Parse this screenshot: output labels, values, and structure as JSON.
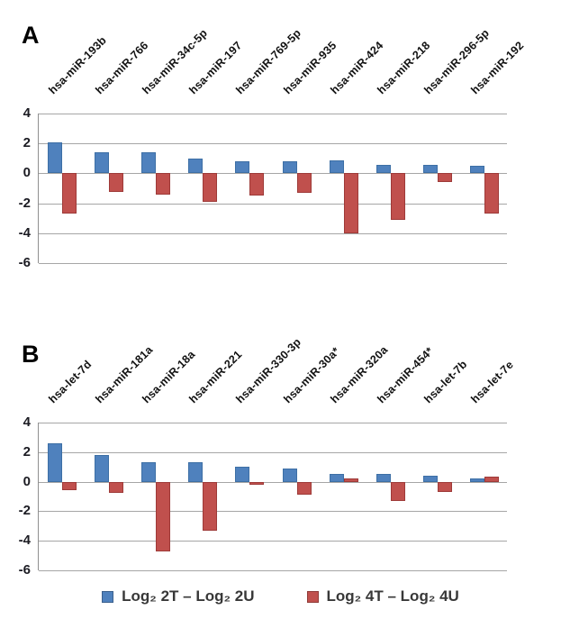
{
  "panels": [
    {
      "letter": "A"
    },
    {
      "letter": "B"
    }
  ],
  "legend": {
    "position": "bottom",
    "items": [
      {
        "label": "Log₂ 2T – Log₂ 2U",
        "color": "#4F81BD"
      },
      {
        "label": "Log₂ 4T – Log₂ 4U",
        "color": "#C0504D"
      }
    ]
  },
  "chart_data": [
    {
      "type": "bar",
      "panel": "A",
      "title": "",
      "xlabel": "",
      "ylabel": "",
      "categories": [
        "hsa-miR-193b",
        "hsa-miR-766",
        "hsa-miR-34c-5p",
        "hsa-miR-197",
        "hsa-miR-769-5p",
        "hsa-miR-935",
        "hsa-miR-424",
        "hsa-miR-218",
        "hsa-miR-296-5p",
        "hsa-miR-192"
      ],
      "series": [
        {
          "name": "Log₂ 2T – Log₂ 2U",
          "color": "#4F81BD",
          "border": "#3D6FA5",
          "values": [
            2.1,
            1.4,
            1.4,
            1.0,
            0.8,
            0.8,
            0.85,
            0.55,
            0.55,
            0.5
          ]
        },
        {
          "name": "Log₂ 4T – Log₂ 4U",
          "color": "#C0504D",
          "border": "#9E3A38",
          "values": [
            -2.7,
            -1.25,
            -1.4,
            -1.9,
            -1.5,
            -1.3,
            -4.0,
            -3.1,
            -0.55,
            -2.7
          ]
        }
      ],
      "ylim": [
        -6,
        4
      ],
      "yticks": [
        4,
        2,
        0,
        -2,
        -4,
        -6
      ],
      "grid": true,
      "legend_position": "shared-bottom"
    },
    {
      "type": "bar",
      "panel": "B",
      "title": "",
      "xlabel": "",
      "ylabel": "",
      "categories": [
        "hsa-let-7d",
        "hsa-miR-181a",
        "hsa-miR-18a",
        "hsa-miR-221",
        "hsa-miR-330-3p",
        "hsa-miR-30a*",
        "hsa-miR-320a",
        "hsa-miR-454*",
        "hsa-let-7b",
        "hsa-let-7e"
      ],
      "series": [
        {
          "name": "Log₂ 2T – Log₂ 2U",
          "color": "#4F81BD",
          "border": "#3D6FA5",
          "values": [
            2.6,
            1.8,
            1.3,
            1.3,
            1.0,
            0.9,
            0.5,
            0.5,
            0.4,
            0.25
          ]
        },
        {
          "name": "Log₂ 4T – Log₂ 4U",
          "color": "#C0504D",
          "border": "#9E3A38",
          "values": [
            -0.55,
            -0.75,
            -4.7,
            -3.3,
            -0.2,
            -0.9,
            0.25,
            -1.3,
            -0.7,
            0.35
          ]
        }
      ],
      "ylim": [
        -6,
        4
      ],
      "yticks": [
        4,
        2,
        0,
        -2,
        -4,
        -6
      ],
      "grid": true,
      "legend_position": "shared-bottom"
    }
  ]
}
